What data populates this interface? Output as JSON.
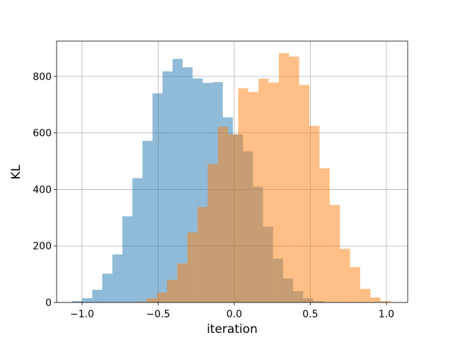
{
  "chart_data": {
    "type": "histogram",
    "xlabel": "iteration",
    "ylabel": "KL",
    "xlim": [
      -1.167,
      1.14
    ],
    "ylim": [
      0,
      925
    ],
    "xticks": [
      {
        "value": -1.0,
        "label": "−1.0"
      },
      {
        "value": -0.5,
        "label": "−0.5"
      },
      {
        "value": 0.0,
        "label": "0.0"
      },
      {
        "value": 0.5,
        "label": "0.5"
      },
      {
        "value": 1.0,
        "label": "1.0"
      }
    ],
    "yticks": [
      0,
      200,
      400,
      600,
      800
    ],
    "grid": true,
    "series": [
      {
        "color": "#1f77b4",
        "opacity": 0.5,
        "bins": [
          -1.065,
          -0.999,
          -0.933,
          -0.867,
          -0.801,
          -0.735,
          -0.669,
          -0.603,
          -0.537,
          -0.471,
          -0.405,
          -0.339,
          -0.273,
          -0.207,
          -0.141,
          -0.075,
          -0.009,
          0.057,
          0.123,
          0.189,
          0.255,
          0.321,
          0.387,
          0.453,
          0.519,
          0.585
        ],
        "values": [
          5,
          15,
          45,
          102,
          170,
          305,
          440,
          572,
          740,
          818,
          862,
          832,
          793,
          777,
          780,
          655,
          595,
          535,
          410,
          268,
          155,
          85,
          40,
          15,
          5
        ]
      },
      {
        "color": "#ff7f0e",
        "opacity": 0.5,
        "bins": [
          -0.642,
          -0.5752,
          -0.5084,
          -0.4416,
          -0.3748,
          -0.308,
          -0.2412,
          -0.1744,
          -0.1076,
          -0.0408,
          0.026,
          0.0928,
          0.1596,
          0.2264,
          0.2932,
          0.36,
          0.4268,
          0.4936,
          0.5604,
          0.6272,
          0.694,
          0.7608,
          0.8276,
          0.8944,
          0.9612,
          1.028
        ],
        "values": [
          3,
          15,
          35,
          80,
          138,
          248,
          338,
          490,
          622,
          595,
          758,
          745,
          792,
          778,
          882,
          870,
          770,
          625,
          475,
          345,
          190,
          125,
          48,
          18,
          5
        ]
      }
    ]
  }
}
